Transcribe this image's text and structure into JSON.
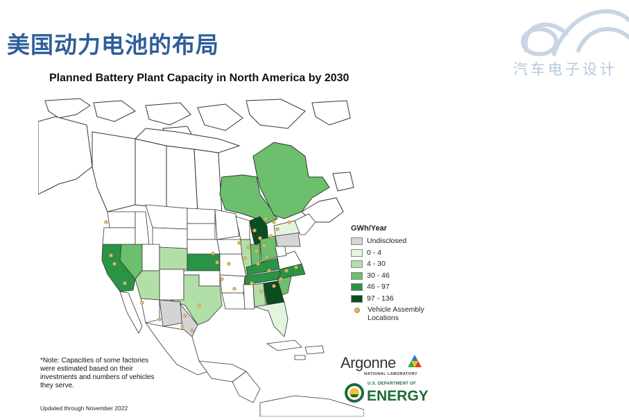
{
  "slide": {
    "title": "美国动力电池的布局"
  },
  "watermark": {
    "text": "汽车电子设计"
  },
  "map": {
    "title": "Planned Battery Plant Capacity in North America by 2030",
    "legend": {
      "title": "GWh/Year",
      "items": [
        {
          "label": "Undisclosed",
          "color": "#d4d4d4"
        },
        {
          "label": "0 - 4",
          "color": "#e3f4df"
        },
        {
          "label": "4 - 30",
          "color": "#b2dfa8"
        },
        {
          "label": "30 - 46",
          "color": "#6cbf6c"
        },
        {
          "label": "46 - 97",
          "color": "#2a9446"
        },
        {
          "label": "97 - 136",
          "color": "#0a4d1e"
        }
      ],
      "marker": {
        "label_line1": "Vehicle Assembly",
        "label_line2": "Locations",
        "color": "#e0b46a"
      }
    },
    "note": "*Note: Capacities of some factories were estimated based on their investments and numbers of vehicles they serve.",
    "updated": "Updated through November 2022",
    "regions": {
      "quebec": "30 - 46",
      "ontario": "30 - 46",
      "michigan": "97 - 136",
      "georgia": "97 - 136",
      "kentucky": "46 - 97",
      "tennessee": "46 - 97",
      "kansas": "46 - 97",
      "north-carolina": "46 - 97",
      "california": "46 - 97",
      "nevada": "30 - 46",
      "indiana": "30 - 46",
      "ohio": "30 - 46",
      "south-carolina": "30 - 46",
      "colorado": "4 - 30",
      "arizona": "4 - 30",
      "texas": "4 - 30",
      "alabama": "4 - 30",
      "illinois": "4 - 30",
      "new-york": "0 - 4",
      "florida": "0 - 4",
      "pennsylvania": "Undisclosed",
      "chihuahua": "Undisclosed",
      "coahuila": "Undisclosed"
    }
  },
  "logos": {
    "argonne": {
      "name": "Argonne",
      "subtitle": "NATIONAL LABORATORY"
    },
    "doe": {
      "subtitle": "U.S. DEPARTMENT OF",
      "name": "ENERGY"
    }
  }
}
